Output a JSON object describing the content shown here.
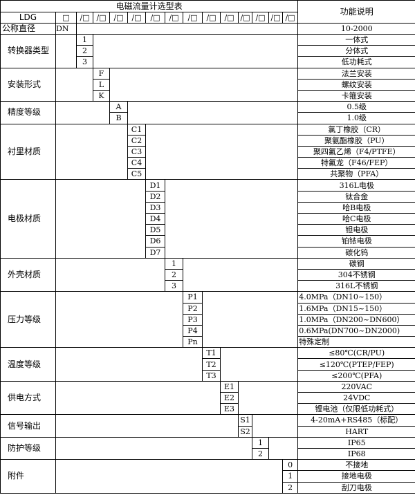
{
  "title": "电磁流量计选型表",
  "function_header": "功能说明",
  "model_row": {
    "model": "LDG",
    "first_box": "□",
    "slot_box": "/□",
    "slot_count": 13
  },
  "nominal": {
    "label": "公称直径",
    "code": "DN",
    "desc": "10-2000"
  },
  "groups": [
    {
      "label": "转换器类型",
      "col": 1,
      "items": [
        [
          "1",
          "一体式"
        ],
        [
          "2",
          "分体式"
        ],
        [
          "3",
          "低功耗式"
        ]
      ]
    },
    {
      "label": "安装形式",
      "col": 2,
      "items": [
        [
          "F",
          "法兰安装"
        ],
        [
          "L",
          "螺纹安装"
        ],
        [
          "K",
          "卡箍安装"
        ]
      ]
    },
    {
      "label": "精度等级",
      "col": 3,
      "items": [
        [
          "A",
          "0.5级"
        ],
        [
          "B",
          "1.0级"
        ]
      ]
    },
    {
      "label": "衬里材质",
      "col": 4,
      "items": [
        [
          "C1",
          "氯丁橡胶（CR）"
        ],
        [
          "C2",
          "聚氨酯橡胶（PU）"
        ],
        [
          "C3",
          "聚四氟乙烯（F4/PTFE）"
        ],
        [
          "C4",
          "特氟龙（F46/FEP）"
        ],
        [
          "C5",
          "共聚物（PFA）"
        ]
      ]
    },
    {
      "label": "电极材质",
      "col": 5,
      "items": [
        [
          "D1",
          "316L电极"
        ],
        [
          "D2",
          "钛合金"
        ],
        [
          "D3",
          "哈B电极"
        ],
        [
          "D4",
          "哈C电极"
        ],
        [
          "D5",
          "钽电极"
        ],
        [
          "D6",
          "铂铱电极"
        ],
        [
          "D7",
          "碳化钨"
        ]
      ]
    },
    {
      "label": "外壳材质",
      "col": 6,
      "items": [
        [
          "1",
          "碳钢"
        ],
        [
          "2",
          "304不锈钢"
        ],
        [
          "3",
          "316L不锈钢"
        ]
      ]
    },
    {
      "label": "压力等级",
      "col": 7,
      "left_align": true,
      "items": [
        [
          "P1",
          "4.0MPa（DN10~150）"
        ],
        [
          "P2",
          "1.6MPa（DN15~150）"
        ],
        [
          "P3",
          "1.0MPa（DN200~DN600）"
        ],
        [
          "P4",
          "0.6MPa(DN700~DN2000)"
        ],
        [
          "Pn",
          "特殊定制"
        ]
      ]
    },
    {
      "label": "温度等级",
      "col": 8,
      "items": [
        [
          "T1",
          "≤80℃(CR/PU)"
        ],
        [
          "T2",
          "≤120℃(PTEP/FEP)"
        ],
        [
          "T3",
          "≤200℃(PFA)"
        ]
      ]
    },
    {
      "label": "供电方式",
      "col": 9,
      "items": [
        [
          "E1",
          "220VAC"
        ],
        [
          "E2",
          "24VDC"
        ],
        [
          "E3",
          "锂电池（仅限低功耗式）"
        ]
      ]
    },
    {
      "label": "信号输出",
      "col": 10,
      "items": [
        [
          "S1",
          "4-20mA+RS485（标配）"
        ],
        [
          "S2",
          "HART"
        ]
      ]
    },
    {
      "label": "防护等级",
      "col": 11,
      "items": [
        [
          "1",
          "IP65"
        ],
        [
          "2",
          "IP68"
        ]
      ]
    },
    {
      "label": "附件",
      "col": 13,
      "items": [
        [
          "0",
          "不接地"
        ],
        [
          "1",
          "接地电极"
        ],
        [
          "2",
          "刮刀电极"
        ]
      ]
    }
  ]
}
